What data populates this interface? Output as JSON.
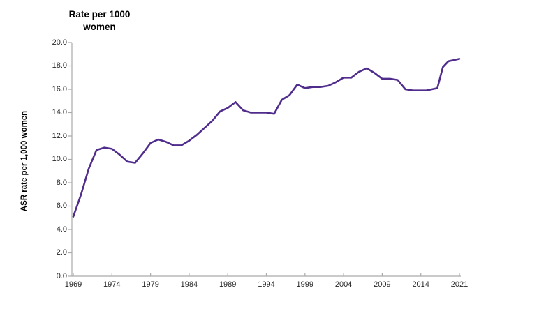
{
  "page": {
    "background_color": "#ffffff",
    "border_top_color": "#000000",
    "border_bottom_color": "#000000",
    "border_right_color": "#3f6b4f"
  },
  "chart_data": {
    "type": "line",
    "title": "Rate per 1000 women",
    "title_lines": [
      "Rate per 1000",
      "women"
    ],
    "ylabel": "ASR rate per 1,000 women",
    "xlabel": "",
    "ylim": [
      0,
      20
    ],
    "ytick_step": 2,
    "ytick_decimals": 1,
    "xtick_labels": [
      "1969",
      "1974",
      "1979",
      "1984",
      "1989",
      "1994",
      "1999",
      "2004",
      "2009",
      "2014",
      "2021"
    ],
    "grid": false,
    "legend_position": "none",
    "line_color": "#502d8c",
    "axis_color": "#ababab",
    "text_color": "#262626",
    "series": [
      {
        "name": "ASR rate per 1,000 women",
        "x": [
          1969,
          1970,
          1971,
          1972,
          1973,
          1974,
          1975,
          1976,
          1977,
          1978,
          1979,
          1980,
          1981,
          1982,
          1983,
          1984,
          1985,
          1986,
          1987,
          1988,
          1989,
          1990,
          1991,
          1992,
          1993,
          1994,
          1995,
          1996,
          1997,
          1998,
          1999,
          2000,
          2001,
          2002,
          2003,
          2004,
          2005,
          2006,
          2007,
          2008,
          2009,
          2010,
          2011,
          2012,
          2013,
          2014,
          2015,
          2016,
          2017,
          2018,
          2019,
          2020,
          2021
        ],
        "values": [
          5.1,
          7.0,
          9.2,
          10.8,
          11.0,
          10.9,
          10.4,
          9.8,
          9.7,
          10.5,
          11.4,
          11.7,
          11.5,
          11.2,
          11.2,
          11.6,
          12.1,
          12.7,
          13.3,
          14.1,
          14.4,
          14.9,
          14.2,
          14.0,
          14.0,
          14.0,
          13.9,
          15.1,
          15.5,
          16.4,
          16.1,
          16.2,
          16.2,
          16.3,
          16.6,
          17.0,
          17.0,
          17.5,
          17.8,
          17.4,
          16.9,
          16.9,
          16.8,
          16.0,
          15.9,
          15.9,
          15.9,
          16.0,
          16.1,
          17.9,
          18.4,
          18.5,
          18.6
        ]
      }
    ]
  }
}
